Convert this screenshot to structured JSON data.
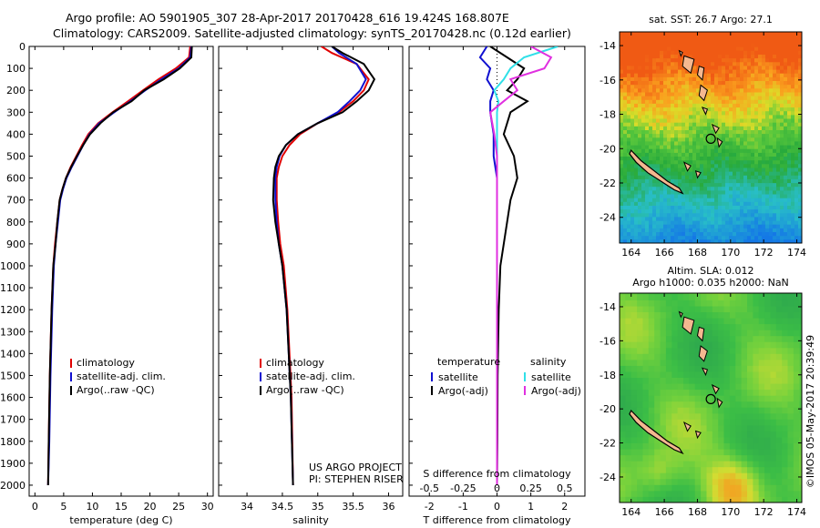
{
  "title": {
    "line1": "Argo profile: AO 5901905_307 28-Apr-2017 20170428_616 19.424S 168.807E",
    "line2": "Climatology: CARS2009. Satellite-adjusted climatology: synTS_20170428.nc (0.12d earlier)"
  },
  "footer": {
    "project": "US ARGO PROJECT",
    "pi": "PI: STEPHEN RISER",
    "stamp": "©IMOS 05-May-2017 20:39:49"
  },
  "colors": {
    "climatology": "#e00000",
    "satellite": "#1010d0",
    "argo": "#000000",
    "sal_satellite": "#30e0e8",
    "sal_argo": "#e030e0"
  },
  "chart_data": [
    {
      "type": "line",
      "name": "temperature-profile",
      "xlabel": "temperature (deg C)",
      "ylabel": "",
      "xlim": [
        -1,
        31
      ],
      "ylim": [
        2050,
        0
      ],
      "xticks": [
        0,
        5,
        10,
        15,
        20,
        25,
        30
      ],
      "yticks": [
        0,
        100,
        200,
        300,
        400,
        500,
        600,
        700,
        800,
        900,
        1000,
        1100,
        1200,
        1300,
        1400,
        1500,
        1600,
        1700,
        1800,
        1900,
        2000
      ],
      "legend": [
        "climatology",
        "satellite-adj. clim.",
        "Argo(..raw -QC)"
      ],
      "series": [
        {
          "name": "climatology",
          "color_key": "climatology",
          "x": [
            27.0,
            26.8,
            24.5,
            21.5,
            18.8,
            16.2,
            13.5,
            11.0,
            9.3,
            8.2,
            7.2,
            6.2,
            5.4,
            4.8,
            4.3,
            3.9,
            3.5,
            3.2,
            2.9,
            2.6,
            2.4,
            2.3
          ],
          "y": [
            0,
            50,
            100,
            150,
            200,
            250,
            300,
            350,
            400,
            450,
            500,
            550,
            600,
            650,
            700,
            800,
            900,
            1000,
            1200,
            1500,
            1800,
            2000
          ]
        },
        {
          "name": "satellite-adj. clim.",
          "color_key": "satellite",
          "x": [
            27.2,
            27.0,
            25.0,
            22.0,
            19.2,
            16.6,
            13.8,
            11.2,
            9.5,
            8.4,
            7.4,
            6.4,
            5.5,
            4.9,
            4.4,
            4.0,
            3.6,
            3.3,
            3.0,
            2.7,
            2.5,
            2.3
          ],
          "y": [
            0,
            50,
            100,
            150,
            200,
            250,
            300,
            350,
            400,
            450,
            500,
            550,
            600,
            650,
            700,
            800,
            900,
            1000,
            1200,
            1500,
            1800,
            2000
          ]
        },
        {
          "name": "Argo(..raw -QC)",
          "color_key": "argo",
          "x": [
            27.3,
            27.2,
            25.2,
            22.4,
            19.0,
            16.8,
            13.6,
            11.4,
            9.6,
            8.4,
            7.3,
            6.3,
            5.4,
            4.8,
            4.3,
            3.9,
            3.6,
            3.2,
            2.9,
            2.6,
            2.4,
            2.3
          ],
          "y": [
            0,
            50,
            100,
            150,
            200,
            250,
            300,
            350,
            400,
            450,
            500,
            550,
            600,
            650,
            700,
            800,
            900,
            1000,
            1200,
            1500,
            1800,
            2000
          ]
        }
      ]
    },
    {
      "type": "line",
      "name": "salinity-profile",
      "xlabel": "salinity",
      "ylabel": "",
      "xlim": [
        33.6,
        36.2
      ],
      "ylim": [
        2050,
        0
      ],
      "xticks": [
        34,
        34.5,
        35,
        35.5,
        36
      ],
      "xticklabels": [
        "34",
        "34.5",
        "35",
        "35.5",
        "36"
      ],
      "legend": [
        "climatology",
        "satellite-adj. clim.",
        "Argo(..raw -QC)"
      ],
      "series": [
        {
          "name": "climatology",
          "color_key": "climatology",
          "x": [
            35.05,
            35.2,
            35.55,
            35.72,
            35.65,
            35.5,
            35.3,
            35.0,
            34.75,
            34.6,
            34.5,
            34.45,
            34.42,
            34.42,
            34.44,
            34.47,
            34.52,
            34.57,
            34.63,
            34.65
          ],
          "y": [
            0,
            30,
            80,
            150,
            200,
            250,
            300,
            350,
            400,
            450,
            500,
            550,
            600,
            700,
            800,
            900,
            1000,
            1200,
            1600,
            2000
          ]
        },
        {
          "name": "satellite-adj. clim.",
          "color_key": "satellite",
          "x": [
            35.2,
            35.3,
            35.55,
            35.68,
            35.6,
            35.45,
            35.28,
            35.0,
            34.72,
            34.55,
            34.46,
            34.42,
            34.4,
            34.4,
            34.42,
            34.45,
            34.5,
            34.56,
            34.62,
            34.65
          ],
          "y": [
            0,
            30,
            80,
            150,
            200,
            250,
            300,
            350,
            400,
            450,
            500,
            550,
            600,
            700,
            800,
            900,
            1000,
            1200,
            1600,
            2000
          ]
        },
        {
          "name": "Argo(..raw -QC)",
          "color_key": "argo",
          "x": [
            35.2,
            35.35,
            35.65,
            35.8,
            35.72,
            35.55,
            35.35,
            35.0,
            34.72,
            34.55,
            34.45,
            34.4,
            34.38,
            34.37,
            34.4,
            34.45,
            34.5,
            34.56,
            34.62,
            34.65
          ],
          "y": [
            0,
            30,
            80,
            150,
            200,
            250,
            300,
            350,
            400,
            450,
            500,
            550,
            600,
            700,
            800,
            900,
            1000,
            1200,
            1600,
            2000
          ]
        }
      ]
    },
    {
      "type": "line",
      "name": "difference-profile",
      "xlabel": "T difference from climatology",
      "xlabel_top": "S difference from climatology",
      "xlim": [
        -2.6,
        2.6
      ],
      "ylim": [
        2050,
        0
      ],
      "xticks": [
        -2,
        -1,
        0,
        1,
        2
      ],
      "sticks": [
        -0.5,
        -0.25,
        0,
        0.25,
        0.5
      ],
      "sticklabels": [
        "-0.5",
        "-0.25",
        "0",
        "0.25",
        "0.5"
      ],
      "legend_groups": [
        {
          "title": "temperature",
          "items": [
            "satellite",
            "Argo(-adj)"
          ]
        },
        {
          "title": "salinity",
          "items": [
            "satellite",
            "Argo(-adj)"
          ]
        }
      ],
      "series": [
        {
          "name": "temperature satellite",
          "color_key": "satellite",
          "x": [
            -0.3,
            -0.5,
            -0.2,
            -0.3,
            -0.1,
            -0.2,
            -0.2,
            -0.1,
            -0.1,
            0,
            0,
            0,
            0,
            0,
            0,
            0,
            0
          ],
          "y": [
            0,
            50,
            100,
            150,
            200,
            250,
            300,
            400,
            500,
            600,
            700,
            800,
            1000,
            1200,
            1500,
            1800,
            2000
          ]
        },
        {
          "name": "temperature Argo(-adj)",
          "color_key": "argo",
          "x": [
            -0.2,
            0.3,
            0.8,
            0.6,
            0.3,
            0.9,
            0.4,
            0.2,
            0.5,
            0.6,
            0.4,
            0.3,
            0.1,
            0.05,
            0.02,
            0.01,
            0
          ],
          "y": [
            0,
            50,
            100,
            150,
            200,
            250,
            300,
            400,
            500,
            600,
            700,
            800,
            1000,
            1200,
            1500,
            1800,
            2000
          ]
        },
        {
          "name": "salinity satellite",
          "color_key": "sal_satellite",
          "x": [
            0.45,
            0.2,
            0.1,
            0.05,
            -0.02,
            0.01,
            0,
            0,
            0,
            0,
            0,
            0,
            0,
            0,
            0,
            0,
            0
          ],
          "y": [
            0,
            50,
            100,
            150,
            200,
            250,
            300,
            400,
            500,
            600,
            700,
            800,
            1000,
            1200,
            1500,
            1800,
            2000
          ]
        },
        {
          "name": "salinity Argo(-adj)",
          "color_key": "sal_argo",
          "x": [
            0.25,
            0.4,
            0.35,
            0.1,
            0.15,
            0.05,
            -0.05,
            -0.02,
            0,
            0,
            0,
            0,
            0,
            0,
            0,
            0,
            0
          ],
          "y": [
            0,
            50,
            100,
            150,
            200,
            250,
            300,
            400,
            500,
            600,
            700,
            800,
            1000,
            1200,
            1500,
            1800,
            2000
          ]
        }
      ]
    },
    {
      "type": "heatmap",
      "name": "sst-map",
      "title": "sat. SST: 26.7  Argo: 27.1",
      "xlim": [
        163.3,
        174.3
      ],
      "ylim": [
        -25.5,
        -13.2
      ],
      "xticks": [
        164,
        166,
        168,
        170,
        172,
        174
      ],
      "yticks": [
        -14,
        -16,
        -18,
        -20,
        -22,
        -24
      ],
      "argo_position": [
        168.807,
        -19.424
      ]
    },
    {
      "type": "heatmap",
      "name": "sla-map",
      "title_line1": "Altim. SLA: 0.012",
      "title_line2": "Argo h1000: 0.035 h2000: NaN",
      "xlim": [
        163.3,
        174.3
      ],
      "ylim": [
        -25.5,
        -13.2
      ],
      "xticks": [
        164,
        166,
        168,
        170,
        172,
        174
      ],
      "yticks": [
        -14,
        -16,
        -18,
        -20,
        -22,
        -24
      ],
      "argo_position": [
        168.807,
        -19.424
      ]
    }
  ]
}
